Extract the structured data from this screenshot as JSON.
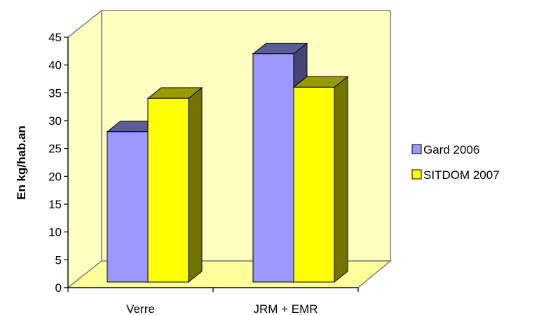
{
  "chart_data": {
    "type": "bar",
    "style": "3d-clustered-column",
    "categories": [
      "Verre",
      "JRM + EMR"
    ],
    "series": [
      {
        "name": "Gard 2006",
        "values": [
          27,
          41
        ],
        "color": "#9999ff"
      },
      {
        "name": "SITDOM 2007",
        "values": [
          33,
          35
        ],
        "color": "#ffff00"
      }
    ],
    "ylabel": "En kg/hab.an",
    "xlabel": "",
    "ylim": [
      0,
      45
    ],
    "yticks": [
      0,
      5,
      10,
      15,
      20,
      25,
      30,
      35,
      40,
      45
    ],
    "grid": false,
    "wall_color": "#ffffc0",
    "floor_color": "#ffff99",
    "legend_position": "right"
  }
}
